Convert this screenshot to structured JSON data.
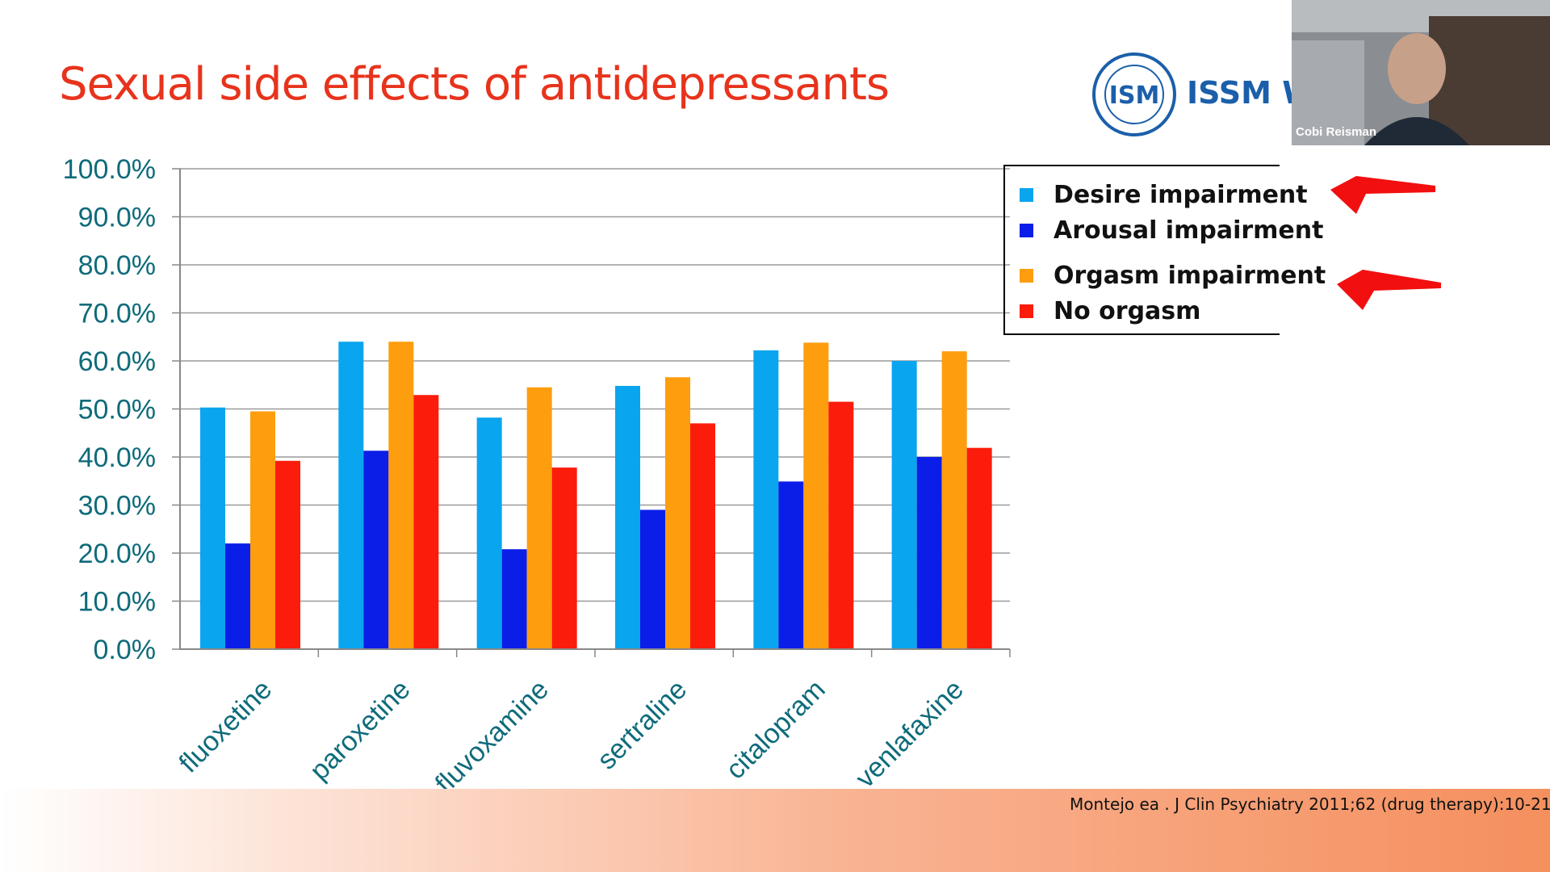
{
  "slide": {
    "title": "Sexual side effects of antidepressants",
    "citation": "Montejo ea .  J Clin Psychiatry 2011;62 (drug therapy):10-21",
    "logo_text": "ISSM W"
  },
  "video": {
    "participant_name": "Cobi Reisman"
  },
  "chart_data": {
    "type": "bar",
    "title": "",
    "xlabel": "",
    "ylabel": "",
    "categories": [
      "fluoxetine",
      "paroxetine",
      "fluvoxamine",
      "sertraline",
      "citalopram",
      "venlafaxine"
    ],
    "series": [
      {
        "name": "Desire impairment",
        "color": "#0aa5ef",
        "values": [
          50.3,
          64.0,
          48.2,
          54.8,
          62.2,
          60.0
        ]
      },
      {
        "name": "Arousal impairment",
        "color": "#0b1ee8",
        "values": [
          22.0,
          41.3,
          20.8,
          29.0,
          34.9,
          40.0
        ]
      },
      {
        "name": "Orgasm impairment",
        "color": "#fe9d0d",
        "values": [
          49.5,
          64.0,
          54.5,
          56.6,
          63.8,
          62.0
        ]
      },
      {
        "name": "No orgasm",
        "color": "#fb1c0c",
        "values": [
          39.2,
          52.9,
          37.8,
          47.0,
          51.5,
          41.9
        ]
      }
    ],
    "ylim": [
      0,
      100
    ],
    "yticks": [
      "0.0%",
      "10.0%",
      "20.0%",
      "30.0%",
      "40.0%",
      "50.0%",
      "60.0%",
      "70.0%",
      "80.0%",
      "90.0%",
      "100.0%"
    ],
    "grid": true,
    "legend_position": "top-right"
  }
}
